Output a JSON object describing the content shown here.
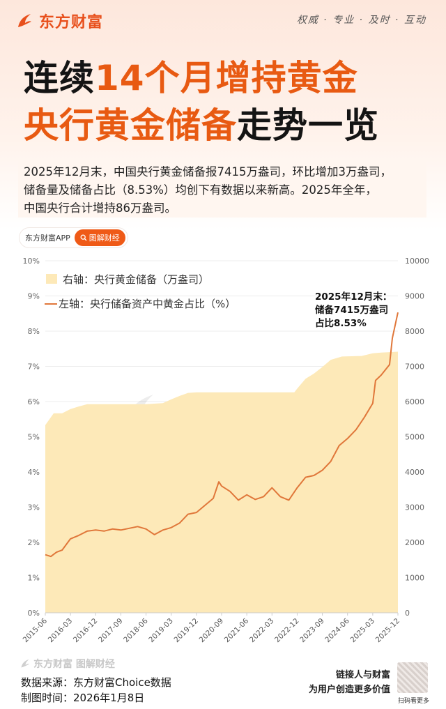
{
  "header": {
    "brand": "东方财富",
    "slogan": "权威 · 专业 · 及时 · 互动"
  },
  "title": {
    "line1_dark": "连续",
    "line1_orange": "14个月增持黄金",
    "line2_orange": "央行黄金储备",
    "line2_dark": "走势一览"
  },
  "intro": {
    "line1": "2025年12月末，中国央行黄金储备报7415万盎司，环比增加3万盎司，",
    "line2": "储备量及储备占比（8.53%）均创下有数据以来新高。2025年全年，",
    "line3": "中国央行合计增持86万盎司。"
  },
  "badges": {
    "app": "东方财富APP",
    "search": "图解财经"
  },
  "chart_data": {
    "type": "area+line",
    "watermark": "东方财富",
    "x_ticks": [
      "2015-06",
      "2016-03",
      "2016-12",
      "2017-09",
      "2018-06",
      "2019-03",
      "2019-12",
      "2020-09",
      "2021-06",
      "2022-03",
      "2022-12",
      "2023-09",
      "2024-06",
      "2025-03",
      "2025-12"
    ],
    "left_axis": {
      "ticks": [
        "0%",
        "1%",
        "2%",
        "3%",
        "4%",
        "5%",
        "6%",
        "7%",
        "8%",
        "9%",
        "10%"
      ],
      "ylim": [
        0,
        10
      ]
    },
    "right_axis": {
      "ticks": [
        "0",
        "1000",
        "2000",
        "3000",
        "4000",
        "5000",
        "6000",
        "7000",
        "8000",
        "9000",
        "10000"
      ],
      "ylim": [
        0,
        10000
      ]
    },
    "legend": [
      "右轴：央行黄金储备（万盎司）",
      "左轴：央行储备资产中黄金占比（%）"
    ],
    "annotation": [
      "2025年12月末：",
      "储备7415万盎司",
      "占比8.53%"
    ],
    "colors": {
      "area": "#fde9b8",
      "line": "#e0773a"
    },
    "series": [
      {
        "name": "右轴：央行黄金储备（万盎司）",
        "axis": "right",
        "points": [
          [
            "2015-06",
            5332
          ],
          [
            "2015-09",
            5666
          ],
          [
            "2015-12",
            5666
          ],
          [
            "2016-03",
            5787
          ],
          [
            "2016-06",
            5862
          ],
          [
            "2016-09",
            5924
          ],
          [
            "2016-12",
            5924
          ],
          [
            "2017-09",
            5924
          ],
          [
            "2018-06",
            5924
          ],
          [
            "2018-12",
            5956
          ],
          [
            "2019-03",
            6062
          ],
          [
            "2019-06",
            6161
          ],
          [
            "2019-09",
            6245
          ],
          [
            "2019-12",
            6264
          ],
          [
            "2020-09",
            6264
          ],
          [
            "2021-06",
            6264
          ],
          [
            "2022-03",
            6264
          ],
          [
            "2022-11",
            6264
          ],
          [
            "2022-12",
            6367
          ],
          [
            "2023-03",
            6650
          ],
          [
            "2023-06",
            6795
          ],
          [
            "2023-09",
            6982
          ],
          [
            "2023-12",
            7187
          ],
          [
            "2024-04",
            7280
          ],
          [
            "2024-11",
            7296
          ],
          [
            "2025-03",
            7370
          ],
          [
            "2025-06",
            7390
          ],
          [
            "2025-12",
            7415
          ]
        ]
      },
      {
        "name": "左轴：央行储备资产中黄金占比（%）",
        "axis": "left",
        "points": [
          [
            "2015-06",
            1.65
          ],
          [
            "2015-08",
            1.6
          ],
          [
            "2015-10",
            1.72
          ],
          [
            "2015-12",
            1.78
          ],
          [
            "2016-03",
            2.1
          ],
          [
            "2016-06",
            2.2
          ],
          [
            "2016-09",
            2.32
          ],
          [
            "2016-12",
            2.35
          ],
          [
            "2017-03",
            2.32
          ],
          [
            "2017-06",
            2.38
          ],
          [
            "2017-09",
            2.35
          ],
          [
            "2017-12",
            2.4
          ],
          [
            "2018-03",
            2.45
          ],
          [
            "2018-06",
            2.38
          ],
          [
            "2018-09",
            2.22
          ],
          [
            "2018-12",
            2.35
          ],
          [
            "2019-03",
            2.42
          ],
          [
            "2019-06",
            2.55
          ],
          [
            "2019-09",
            2.8
          ],
          [
            "2019-12",
            2.85
          ],
          [
            "2020-03",
            3.05
          ],
          [
            "2020-06",
            3.25
          ],
          [
            "2020-08",
            3.72
          ],
          [
            "2020-09",
            3.6
          ],
          [
            "2020-12",
            3.45
          ],
          [
            "2021-03",
            3.2
          ],
          [
            "2021-06",
            3.35
          ],
          [
            "2021-09",
            3.22
          ],
          [
            "2021-12",
            3.3
          ],
          [
            "2022-03",
            3.55
          ],
          [
            "2022-06",
            3.3
          ],
          [
            "2022-09",
            3.2
          ],
          [
            "2022-12",
            3.55
          ],
          [
            "2023-03",
            3.85
          ],
          [
            "2023-06",
            3.9
          ],
          [
            "2023-09",
            4.05
          ],
          [
            "2023-12",
            4.3
          ],
          [
            "2024-03",
            4.75
          ],
          [
            "2024-06",
            4.95
          ],
          [
            "2024-09",
            5.2
          ],
          [
            "2024-12",
            5.55
          ],
          [
            "2025-03",
            5.95
          ],
          [
            "2025-04",
            6.6
          ],
          [
            "2025-06",
            6.75
          ],
          [
            "2025-09",
            7.05
          ],
          [
            "2025-10",
            7.8
          ],
          [
            "2025-12",
            8.53
          ]
        ]
      }
    ]
  },
  "footer": {
    "brand": "东方财富 图解财经",
    "source": "数据来源：东方财富Choice数据",
    "date": "制图时间：2026年1月8日",
    "tagline1": "链接人与财富",
    "tagline2": "为用户创造更多价值",
    "qr_label": "扫码看更多"
  }
}
